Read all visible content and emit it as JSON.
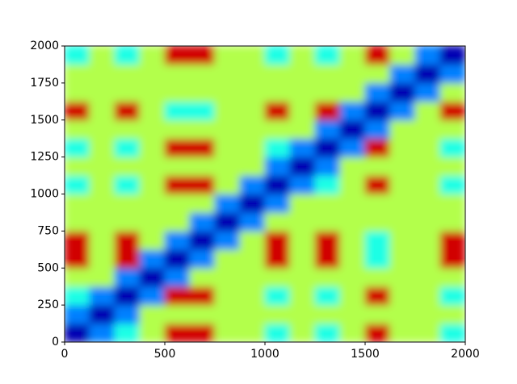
{
  "chart_data": {
    "type": "heatmap",
    "colormap": "jet",
    "xlim": [
      0,
      2000
    ],
    "ylim": [
      0,
      2000
    ],
    "zlim": [
      0,
      1
    ],
    "xticks": [
      0,
      500,
      1000,
      1500,
      2000
    ],
    "yticks": [
      0,
      250,
      500,
      750,
      1000,
      1250,
      1500,
      1750,
      2000
    ],
    "z": [
      [
        0.05,
        0.25,
        0.4,
        0.55,
        0.92,
        0.92,
        0.55,
        0.55,
        0.4,
        0.55,
        0.4,
        0.55,
        0.92,
        0.55,
        0.55,
        0.4
      ],
      [
        0.25,
        0.05,
        0.25,
        0.55,
        0.55,
        0.55,
        0.55,
        0.55,
        0.55,
        0.55,
        0.55,
        0.55,
        0.55,
        0.55,
        0.55,
        0.55
      ],
      [
        0.4,
        0.25,
        0.05,
        0.25,
        0.92,
        0.92,
        0.55,
        0.55,
        0.4,
        0.55,
        0.4,
        0.55,
        0.92,
        0.55,
        0.55,
        0.4
      ],
      [
        0.55,
        0.55,
        0.25,
        0.05,
        0.25,
        0.55,
        0.55,
        0.55,
        0.55,
        0.55,
        0.55,
        0.55,
        0.55,
        0.55,
        0.55,
        0.55
      ],
      [
        0.92,
        0.55,
        0.92,
        0.25,
        0.05,
        0.25,
        0.55,
        0.55,
        0.92,
        0.55,
        0.92,
        0.55,
        0.4,
        0.55,
        0.55,
        0.92
      ],
      [
        0.92,
        0.55,
        0.92,
        0.55,
        0.25,
        0.05,
        0.25,
        0.55,
        0.92,
        0.55,
        0.92,
        0.55,
        0.4,
        0.55,
        0.55,
        0.92
      ],
      [
        0.55,
        0.55,
        0.55,
        0.55,
        0.55,
        0.25,
        0.05,
        0.25,
        0.55,
        0.55,
        0.55,
        0.55,
        0.55,
        0.55,
        0.55,
        0.55
      ],
      [
        0.55,
        0.55,
        0.55,
        0.55,
        0.55,
        0.55,
        0.25,
        0.05,
        0.25,
        0.55,
        0.55,
        0.55,
        0.55,
        0.55,
        0.55,
        0.55
      ],
      [
        0.4,
        0.55,
        0.4,
        0.55,
        0.92,
        0.92,
        0.55,
        0.25,
        0.05,
        0.25,
        0.4,
        0.55,
        0.92,
        0.55,
        0.55,
        0.4
      ],
      [
        0.55,
        0.55,
        0.55,
        0.55,
        0.55,
        0.55,
        0.55,
        0.55,
        0.25,
        0.05,
        0.25,
        0.55,
        0.55,
        0.55,
        0.55,
        0.55
      ],
      [
        0.4,
        0.55,
        0.4,
        0.55,
        0.92,
        0.92,
        0.55,
        0.55,
        0.4,
        0.25,
        0.05,
        0.25,
        0.92,
        0.55,
        0.55,
        0.4
      ],
      [
        0.55,
        0.55,
        0.55,
        0.55,
        0.55,
        0.55,
        0.55,
        0.55,
        0.55,
        0.55,
        0.25,
        0.05,
        0.25,
        0.55,
        0.55,
        0.55
      ],
      [
        0.92,
        0.55,
        0.92,
        0.55,
        0.4,
        0.4,
        0.55,
        0.55,
        0.92,
        0.55,
        0.92,
        0.25,
        0.05,
        0.25,
        0.55,
        0.92
      ],
      [
        0.55,
        0.55,
        0.55,
        0.55,
        0.55,
        0.55,
        0.55,
        0.55,
        0.55,
        0.55,
        0.55,
        0.55,
        0.25,
        0.05,
        0.25,
        0.55
      ],
      [
        0.55,
        0.55,
        0.55,
        0.55,
        0.55,
        0.55,
        0.55,
        0.55,
        0.55,
        0.55,
        0.55,
        0.55,
        0.55,
        0.25,
        0.05,
        0.25
      ],
      [
        0.4,
        0.55,
        0.4,
        0.55,
        0.92,
        0.92,
        0.55,
        0.55,
        0.4,
        0.55,
        0.4,
        0.55,
        0.92,
        0.55,
        0.25,
        0.05
      ]
    ]
  }
}
